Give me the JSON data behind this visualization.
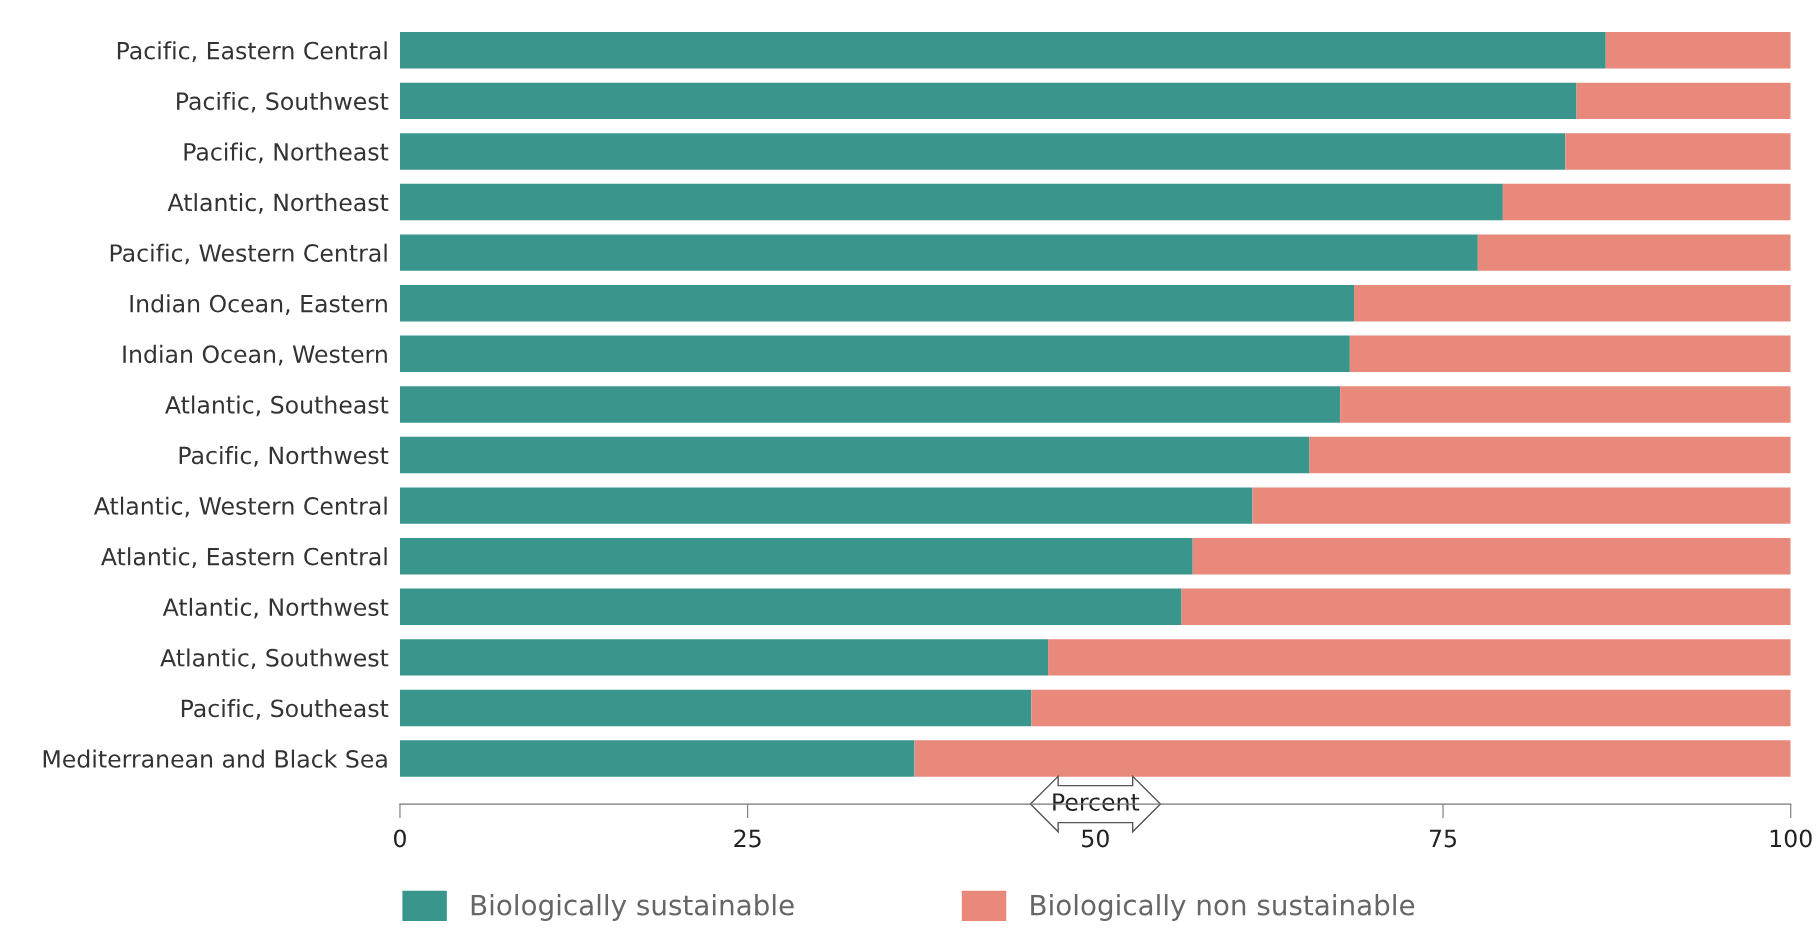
{
  "chart_data": {
    "type": "bar",
    "orientation": "horizontal",
    "stacked": true,
    "xlabel": "Percent",
    "categories": [
      "Pacific, Eastern Central",
      "Pacific, Southwest",
      "Pacific, Northeast",
      "Atlantic, Northeast",
      "Pacific, Western Central",
      "Indian Ocean, Eastern",
      "Indian Ocean, Western",
      "Atlantic, Southeast",
      "Pacific, Northwest",
      "Atlantic, Western Central",
      "Atlantic, Eastern Central",
      "Atlantic, Northwest",
      "Atlantic, Southwest",
      "Pacific, Southeast",
      "Mediterranean and Black Sea"
    ],
    "series": [
      {
        "name": "Biologically sustainable",
        "color": "#3a968c",
        "values": [
          86.7,
          84.6,
          83.8,
          79.3,
          77.5,
          68.6,
          68.3,
          67.6,
          65.4,
          61.3,
          57.0,
          56.2,
          46.6,
          45.4,
          37.0
        ]
      },
      {
        "name": "Biologically non sustainable",
        "color": "#e8897c",
        "values": [
          13.3,
          15.4,
          16.2,
          20.7,
          22.5,
          31.4,
          31.7,
          32.4,
          34.6,
          38.7,
          43.0,
          43.8,
          53.4,
          54.6,
          63.0
        ]
      }
    ],
    "xlim": [
      0,
      100
    ],
    "xticks": [
      0,
      25,
      50,
      75,
      100
    ],
    "grid": false,
    "legend": "bottom"
  }
}
